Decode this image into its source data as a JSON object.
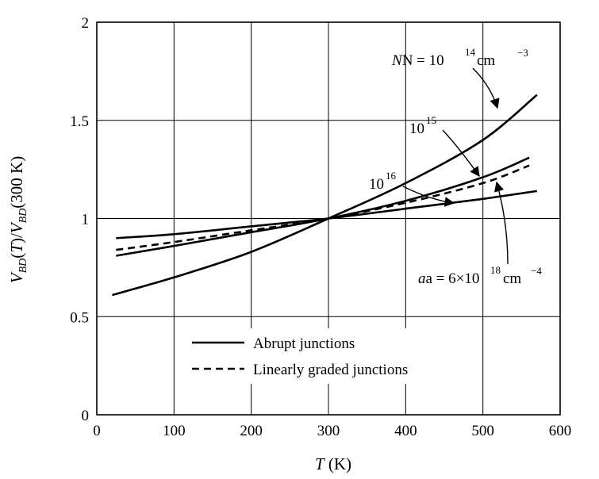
{
  "chart_data": {
    "type": "line",
    "xlabel": "T (K)",
    "ylabel": "VBD(T)/VBD(300 K)",
    "xlim": [
      0,
      600
    ],
    "ylim": [
      0,
      2
    ],
    "x_ticks": [
      "0",
      "100",
      "200",
      "300",
      "400",
      "500",
      "600"
    ],
    "y_ticks": [
      "0",
      "0.5",
      "1",
      "1.5",
      "2"
    ],
    "grid": true,
    "legend": {
      "placement": "lower-center",
      "entries": [
        {
          "label": "Abrupt junctions",
          "style": "solid"
        },
        {
          "label": "Linearly graded junctions",
          "style": "dashed"
        }
      ]
    },
    "series": [
      {
        "style": "solid",
        "annotation": "N = 10^14 cm^-3",
        "points": [
          [
            20,
            0.61
          ],
          [
            100,
            0.7
          ],
          [
            200,
            0.83
          ],
          [
            300,
            1.0
          ],
          [
            400,
            1.18
          ],
          [
            500,
            1.4
          ],
          [
            570,
            1.63
          ]
        ]
      },
      {
        "style": "solid",
        "annotation": "10^15",
        "points": [
          [
            25,
            0.81
          ],
          [
            100,
            0.86
          ],
          [
            200,
            0.93
          ],
          [
            300,
            1.0
          ],
          [
            400,
            1.09
          ],
          [
            500,
            1.21
          ],
          [
            560,
            1.31
          ]
        ]
      },
      {
        "style": "solid",
        "annotation": "10^16",
        "points": [
          [
            25,
            0.9
          ],
          [
            100,
            0.92
          ],
          [
            200,
            0.96
          ],
          [
            300,
            1.0
          ],
          [
            400,
            1.05
          ],
          [
            500,
            1.1
          ],
          [
            570,
            1.14
          ]
        ]
      },
      {
        "style": "dashed",
        "annotation": "a = 6×10^18 cm^-4",
        "points": [
          [
            25,
            0.84
          ],
          [
            100,
            0.88
          ],
          [
            200,
            0.94
          ],
          [
            300,
            1.0
          ],
          [
            400,
            1.08
          ],
          [
            500,
            1.18
          ],
          [
            560,
            1.27
          ]
        ]
      }
    ],
    "annotations": {
      "n14": {
        "base": "N = 10",
        "exp": "14",
        "unit": " cm",
        "unit_exp": "−3"
      },
      "n15": {
        "base": "10",
        "exp": "15"
      },
      "n16": {
        "base": "10",
        "exp": "16"
      },
      "graded": {
        "base": "a = 6×10",
        "exp": "18",
        "unit": "cm",
        "unit_exp": "−4"
      }
    }
  }
}
